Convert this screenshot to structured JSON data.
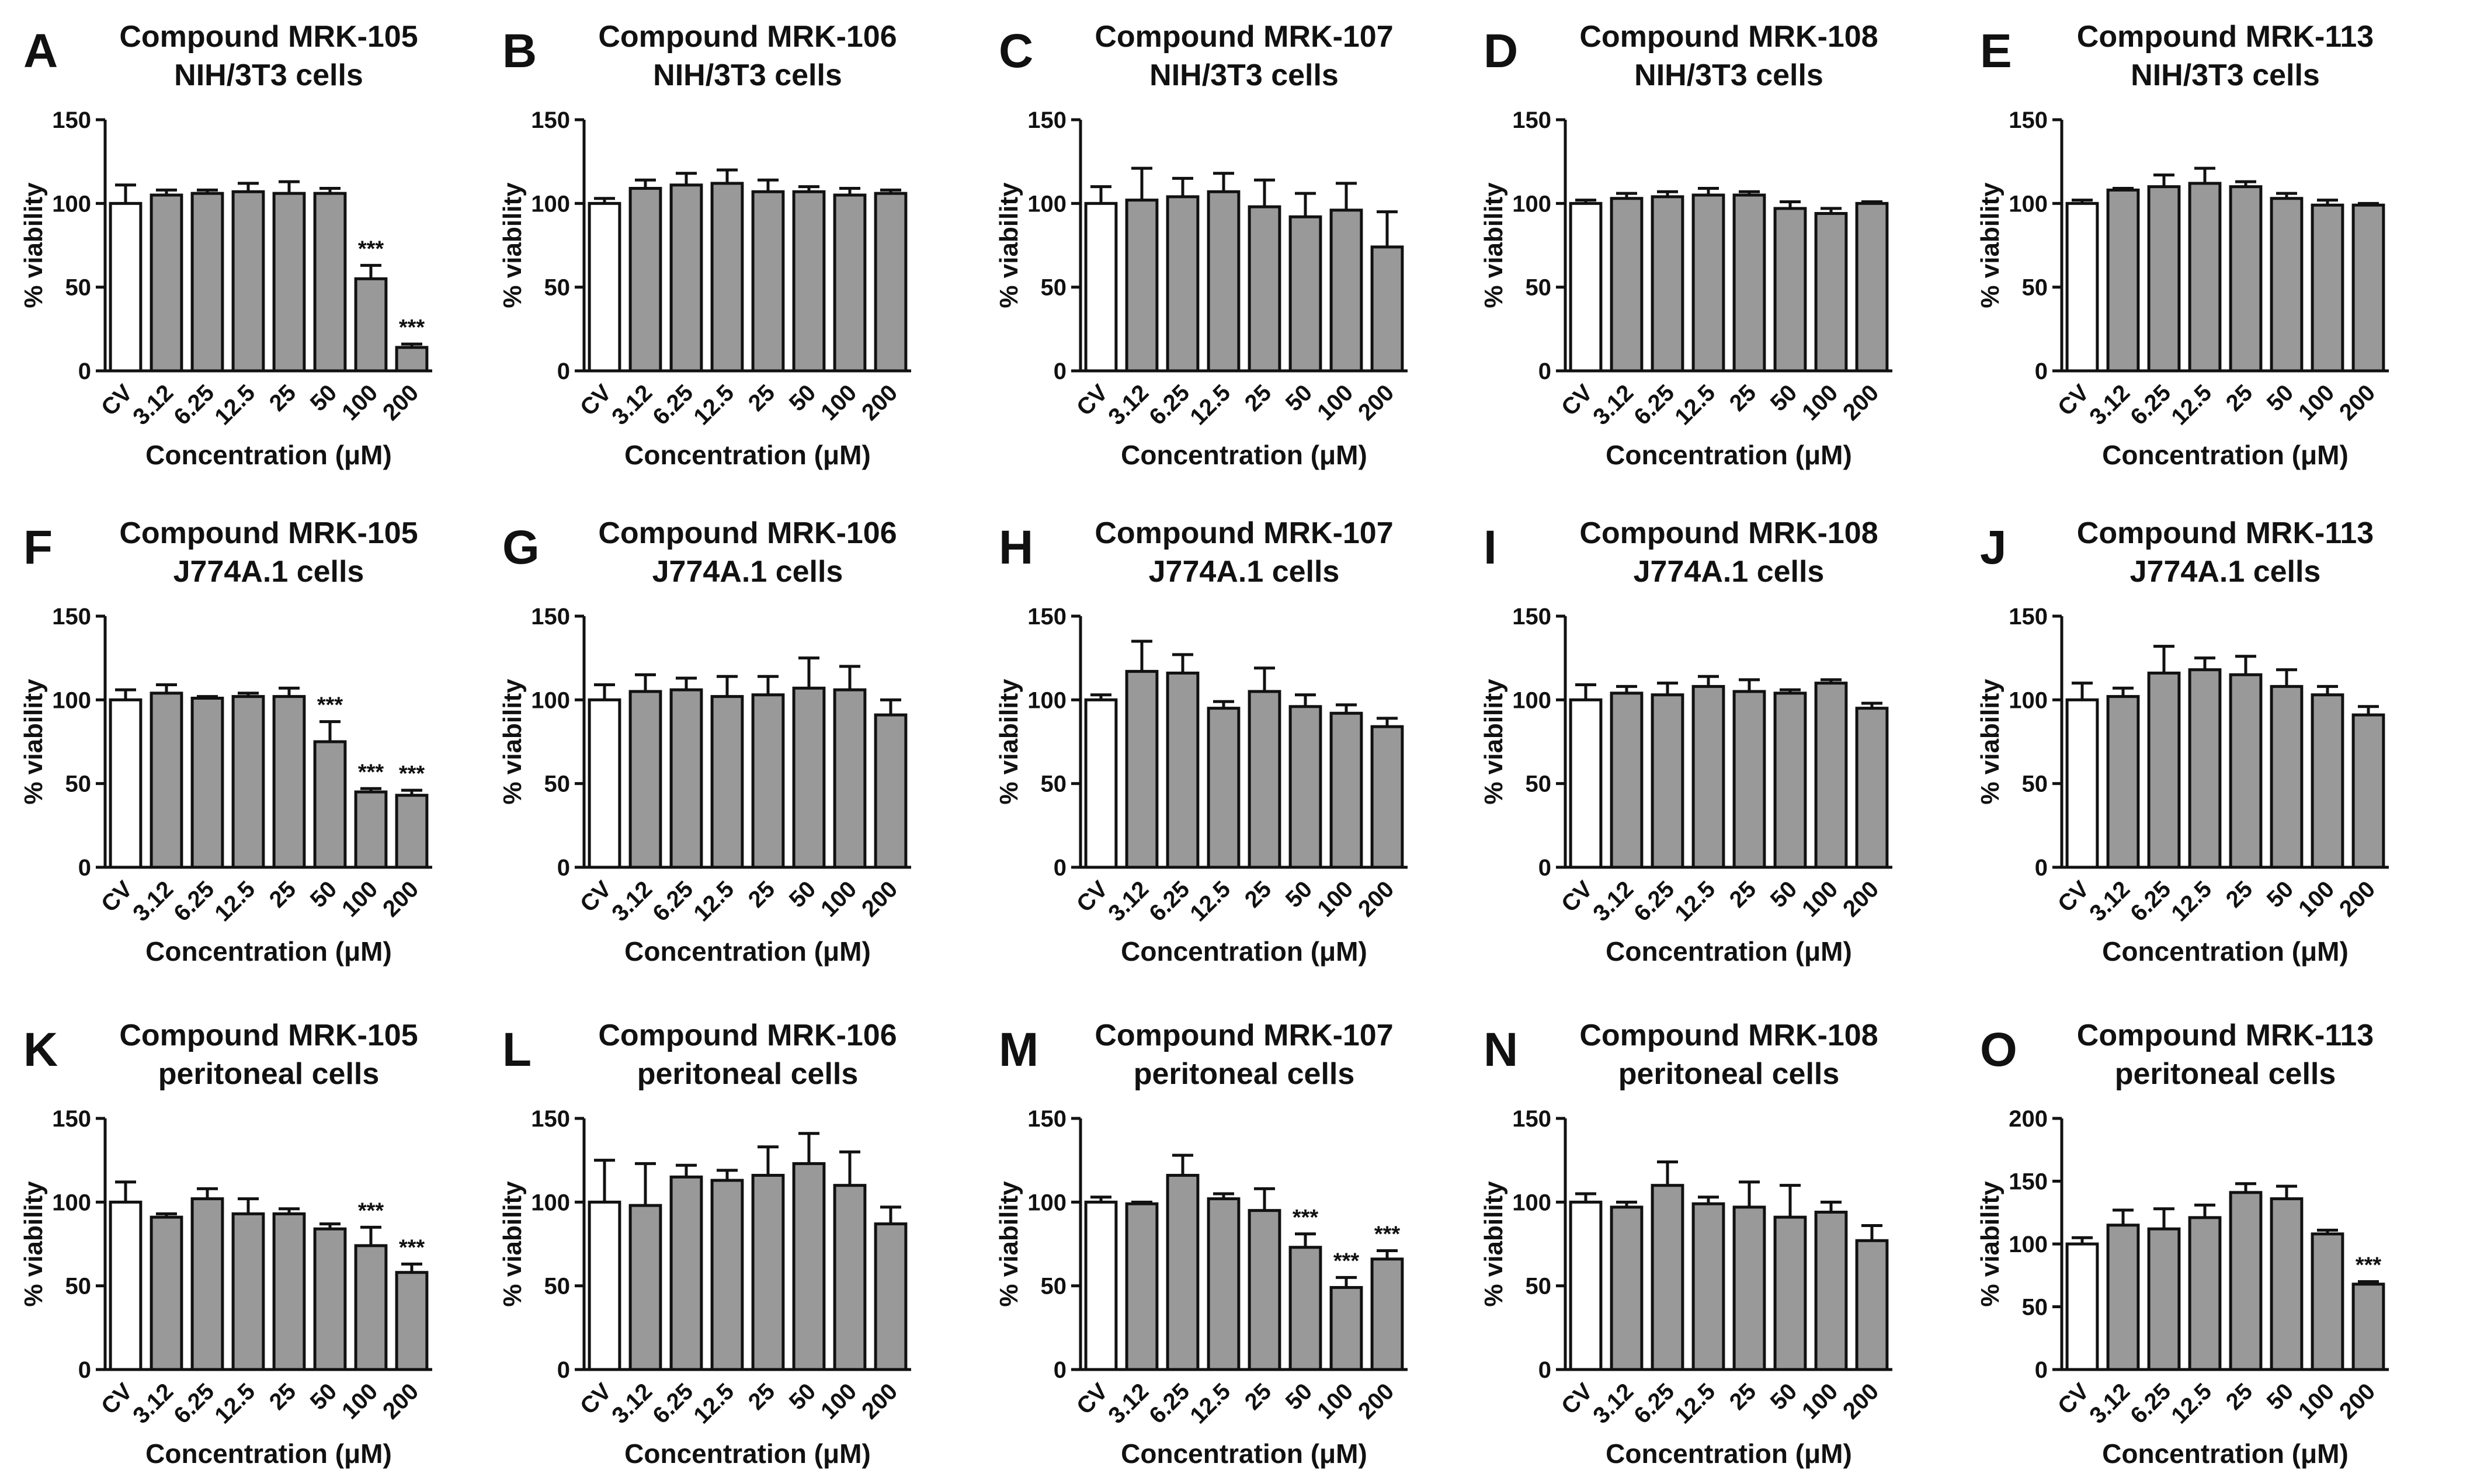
{
  "figure": {
    "categories": [
      "CV",
      "3.12",
      "6.25",
      "12.5",
      "25",
      "50",
      "100",
      "200"
    ],
    "ylabel": "% viability",
    "xlabel": "Concentration (μM)",
    "bar_colors": {
      "control": "#ffffff",
      "treated": "#999999"
    },
    "significance_marker": "***"
  },
  "chart_data": [
    {
      "panel": "A",
      "type": "bar",
      "title": [
        "Compound MRK-105",
        "NIH/3T3 cells"
      ],
      "ylim": [
        0,
        150
      ],
      "yticks": [
        0,
        50,
        100,
        150
      ],
      "values": [
        100,
        105,
        106,
        107,
        106,
        106,
        55,
        14
      ],
      "errors": [
        11,
        3,
        2,
        5,
        7,
        3,
        8,
        2
      ],
      "annotations": [
        "",
        "",
        "",
        "",
        "",
        "",
        "***",
        "***"
      ]
    },
    {
      "panel": "B",
      "type": "bar",
      "title": [
        "Compound MRK-106",
        "NIH/3T3 cells"
      ],
      "ylim": [
        0,
        150
      ],
      "yticks": [
        0,
        50,
        100,
        150
      ],
      "values": [
        100,
        109,
        111,
        112,
        107,
        107,
        105,
        106
      ],
      "errors": [
        3,
        5,
        7,
        8,
        7,
        3,
        4,
        2
      ],
      "annotations": [
        "",
        "",
        "",
        "",
        "",
        "",
        "",
        ""
      ]
    },
    {
      "panel": "C",
      "type": "bar",
      "title": [
        "Compound MRK-107",
        "NIH/3T3 cells"
      ],
      "ylim": [
        0,
        150
      ],
      "yticks": [
        0,
        50,
        100,
        150
      ],
      "values": [
        100,
        102,
        104,
        107,
        98,
        92,
        96,
        74
      ],
      "errors": [
        10,
        19,
        11,
        11,
        16,
        14,
        16,
        21
      ],
      "annotations": [
        "",
        "",
        "",
        "",
        "",
        "",
        "",
        ""
      ]
    },
    {
      "panel": "D",
      "type": "bar",
      "title": [
        "Compound MRK-108",
        "NIH/3T3 cells"
      ],
      "ylim": [
        0,
        150
      ],
      "yticks": [
        0,
        50,
        100,
        150
      ],
      "values": [
        100,
        103,
        104,
        105,
        105,
        97,
        94,
        100
      ],
      "errors": [
        2,
        3,
        3,
        4,
        2,
        4,
        3,
        1
      ],
      "annotations": [
        "",
        "",
        "",
        "",
        "",
        "",
        "",
        ""
      ]
    },
    {
      "panel": "E",
      "type": "bar",
      "title": [
        "Compound MRK-113",
        "NIH/3T3 cells"
      ],
      "ylim": [
        0,
        150
      ],
      "yticks": [
        0,
        50,
        100,
        150
      ],
      "values": [
        100,
        108,
        110,
        112,
        110,
        103,
        99,
        99
      ],
      "errors": [
        2,
        1,
        7,
        9,
        3,
        3,
        3,
        1
      ],
      "annotations": [
        "",
        "",
        "",
        "",
        "",
        "",
        "",
        ""
      ]
    },
    {
      "panel": "F",
      "type": "bar",
      "title": [
        "Compound MRK-105",
        "J774A.1 cells"
      ],
      "ylim": [
        0,
        150
      ],
      "yticks": [
        0,
        50,
        100,
        150
      ],
      "values": [
        100,
        104,
        101,
        102,
        102,
        75,
        45,
        43
      ],
      "errors": [
        6,
        5,
        1,
        2,
        5,
        12,
        2,
        3
      ],
      "annotations": [
        "",
        "",
        "",
        "",
        "",
        "***",
        "***",
        "***"
      ]
    },
    {
      "panel": "G",
      "type": "bar",
      "title": [
        "Compound MRK-106",
        "J774A.1 cells"
      ],
      "ylim": [
        0,
        150
      ],
      "yticks": [
        0,
        50,
        100,
        150
      ],
      "values": [
        100,
        105,
        106,
        102,
        103,
        107,
        106,
        91
      ],
      "errors": [
        9,
        10,
        7,
        12,
        11,
        18,
        14,
        9
      ],
      "annotations": [
        "",
        "",
        "",
        "",
        "",
        "",
        "",
        ""
      ]
    },
    {
      "panel": "H",
      "type": "bar",
      "title": [
        "Compound MRK-107",
        "J774A.1 cells"
      ],
      "ylim": [
        0,
        150
      ],
      "yticks": [
        0,
        50,
        100,
        150
      ],
      "values": [
        100,
        117,
        116,
        95,
        105,
        96,
        92,
        84
      ],
      "errors": [
        3,
        18,
        11,
        4,
        14,
        7,
        5,
        5
      ],
      "annotations": [
        "",
        "",
        "",
        "",
        "",
        "",
        "",
        ""
      ]
    },
    {
      "panel": "I",
      "type": "bar",
      "title": [
        "Compound MRK-108",
        "J774A.1 cells"
      ],
      "ylim": [
        0,
        150
      ],
      "yticks": [
        0,
        50,
        100,
        150
      ],
      "values": [
        100,
        104,
        103,
        108,
        105,
        104,
        110,
        95
      ],
      "errors": [
        9,
        4,
        7,
        6,
        7,
        2,
        2,
        3
      ],
      "annotations": [
        "",
        "",
        "",
        "",
        "",
        "",
        "",
        ""
      ]
    },
    {
      "panel": "J",
      "type": "bar",
      "title": [
        "Compound MRK-113",
        "J774A.1 cells"
      ],
      "ylim": [
        0,
        150
      ],
      "yticks": [
        0,
        50,
        100,
        150
      ],
      "values": [
        100,
        102,
        116,
        118,
        115,
        108,
        103,
        91
      ],
      "errors": [
        10,
        5,
        16,
        7,
        11,
        10,
        5,
        5
      ],
      "annotations": [
        "",
        "",
        "",
        "",
        "",
        "",
        "",
        ""
      ]
    },
    {
      "panel": "K",
      "type": "bar",
      "title": [
        "Compound MRK-105",
        "peritoneal cells"
      ],
      "ylim": [
        0,
        150
      ],
      "yticks": [
        0,
        50,
        100,
        150
      ],
      "values": [
        100,
        91,
        102,
        93,
        93,
        84,
        74,
        58
      ],
      "errors": [
        12,
        2,
        6,
        9,
        3,
        3,
        11,
        5
      ],
      "annotations": [
        "",
        "",
        "",
        "",
        "",
        "",
        "***",
        "***"
      ]
    },
    {
      "panel": "L",
      "type": "bar",
      "title": [
        "Compound MRK-106",
        "peritoneal cells"
      ],
      "ylim": [
        0,
        150
      ],
      "yticks": [
        0,
        50,
        100,
        150
      ],
      "values": [
        100,
        98,
        115,
        113,
        116,
        123,
        110,
        87
      ],
      "errors": [
        25,
        25,
        7,
        6,
        17,
        18,
        20,
        10
      ],
      "annotations": [
        "",
        "",
        "",
        "",
        "",
        "",
        "",
        ""
      ]
    },
    {
      "panel": "M",
      "type": "bar",
      "title": [
        "Compound MRK-107",
        "peritoneal cells"
      ],
      "ylim": [
        0,
        150
      ],
      "yticks": [
        0,
        50,
        100,
        150
      ],
      "values": [
        100,
        99,
        116,
        102,
        95,
        73,
        49,
        66
      ],
      "errors": [
        3,
        1,
        12,
        3,
        13,
        8,
        6,
        5
      ],
      "annotations": [
        "",
        "",
        "",
        "",
        "",
        "***",
        "***",
        "***"
      ]
    },
    {
      "panel": "N",
      "type": "bar",
      "title": [
        "Compound MRK-108",
        "peritoneal cells"
      ],
      "ylim": [
        0,
        150
      ],
      "yticks": [
        0,
        50,
        100,
        150
      ],
      "values": [
        100,
        97,
        110,
        99,
        97,
        91,
        94,
        77
      ],
      "errors": [
        5,
        3,
        14,
        4,
        15,
        19,
        6,
        9
      ],
      "annotations": [
        "",
        "",
        "",
        "",
        "",
        "",
        "",
        ""
      ]
    },
    {
      "panel": "O",
      "type": "bar",
      "title": [
        "Compound MRK-113",
        "peritoneal cells"
      ],
      "ylim": [
        0,
        200
      ],
      "yticks": [
        0,
        50,
        100,
        150,
        200
      ],
      "values": [
        100,
        115,
        112,
        121,
        141,
        136,
        108,
        68
      ],
      "errors": [
        5,
        12,
        16,
        10,
        7,
        10,
        3,
        2
      ],
      "annotations": [
        "",
        "",
        "",
        "",
        "",
        "",
        "",
        "***"
      ]
    }
  ]
}
